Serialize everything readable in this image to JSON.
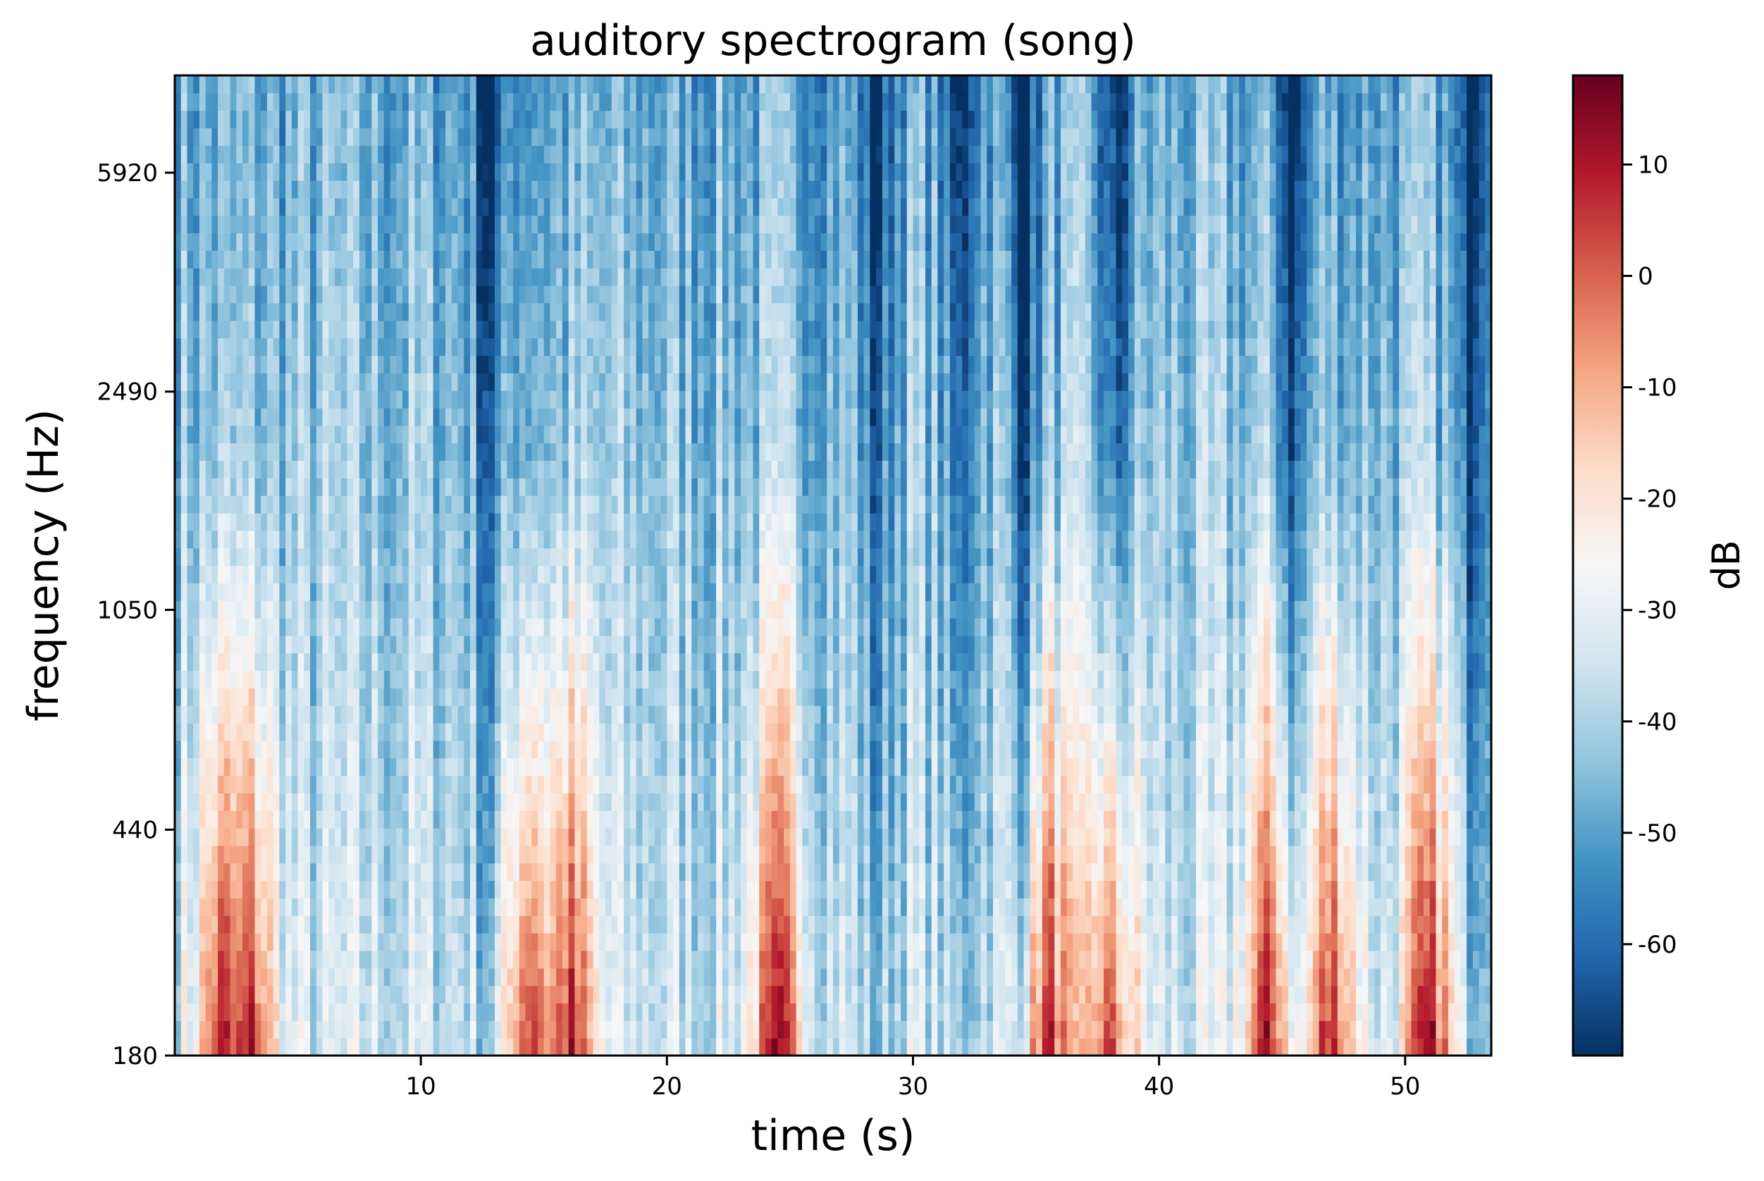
{
  "chart_data": {
    "type": "heatmap",
    "title": "auditory spectrogram (song)",
    "xlabel": "time (s)",
    "ylabel": "frequency (Hz)",
    "xlim": [
      0,
      53.5
    ],
    "x_ticks": [
      10,
      20,
      30,
      40,
      50
    ],
    "x_tick_labels": [
      "10",
      "20",
      "30",
      "40",
      "50"
    ],
    "y_scale": "log",
    "ylim": [
      180,
      8700
    ],
    "y_ticks": [
      180,
      440,
      1050,
      2490,
      5920
    ],
    "y_tick_labels": [
      "180",
      "440",
      "1050",
      "2490",
      "5920"
    ],
    "colorbar": {
      "label": "dB",
      "colormap": "RdBu_r",
      "range": [
        -70,
        18
      ],
      "ticks": [
        10,
        0,
        -10,
        -20,
        -30,
        -40,
        -50,
        -60
      ],
      "tick_labels": [
        "10",
        "0",
        "-10",
        "-20",
        "-30",
        "-40",
        "-50",
        "-60"
      ]
    },
    "colormap_stops": [
      "#053061",
      "#2166ac",
      "#4393c3",
      "#92c5de",
      "#d1e5f0",
      "#f7f7f7",
      "#fddbc7",
      "#f4a582",
      "#d6604d",
      "#b2182b",
      "#67001f"
    ],
    "intensity_notes": {
      "strong_low_frequency_energy_times_s": [
        2.0,
        3.0,
        14.5,
        16.0,
        24.5,
        35.5,
        38.0,
        44.5,
        47.0,
        51.0
      ],
      "quiet_high_frequency_times_s": [
        12.8,
        28.5,
        31.8,
        34.5,
        38.2,
        45.5,
        52.5
      ]
    }
  }
}
